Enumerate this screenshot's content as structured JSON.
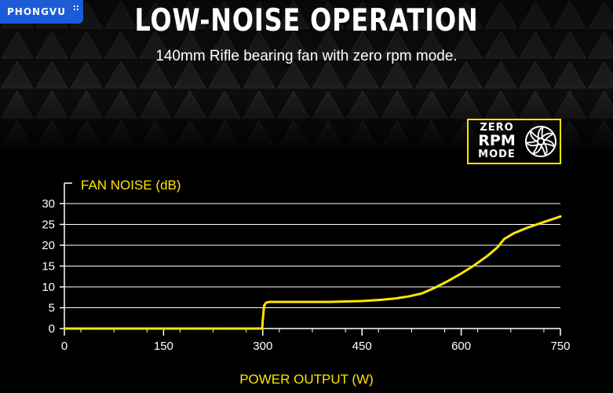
{
  "brand": {
    "label": "PHONGVU"
  },
  "header": {
    "title": "LOW-NOISE OPERATION",
    "subtitle": "140mm Rifle bearing fan with zero rpm mode."
  },
  "badge": {
    "line1": "ZERO",
    "line2": "RPM",
    "line3": "MODE",
    "icon": "fan-icon"
  },
  "colors": {
    "accent": "#ffe600",
    "background": "#000000",
    "grid": "#ffffff"
  },
  "chart_data": {
    "type": "line",
    "title": "",
    "ylabel": "FAN NOISE (dB)",
    "xlabel": "POWER OUTPUT (W)",
    "xlim": [
      0,
      750
    ],
    "ylim": [
      0,
      30
    ],
    "xticks": [
      0,
      150,
      300,
      450,
      600,
      750
    ],
    "yticks": [
      0,
      5,
      10,
      15,
      20,
      25,
      30
    ],
    "grid": true,
    "series": [
      {
        "x": [
          0,
          100,
          200,
          299,
          300,
          302,
          305,
          310,
          320,
          350,
          400,
          450,
          480,
          500,
          520,
          540,
          560,
          580,
          600,
          620,
          640,
          655,
          665,
          680,
          700,
          720,
          750
        ],
        "y": [
          0,
          0,
          0,
          0,
          2,
          5.5,
          6.2,
          6.4,
          6.4,
          6.4,
          6.4,
          6.6,
          6.9,
          7.2,
          7.7,
          8.4,
          9.8,
          11.4,
          13.2,
          15.2,
          17.5,
          19.5,
          21.5,
          22.9,
          24.2,
          25.3,
          26.9
        ]
      }
    ]
  }
}
